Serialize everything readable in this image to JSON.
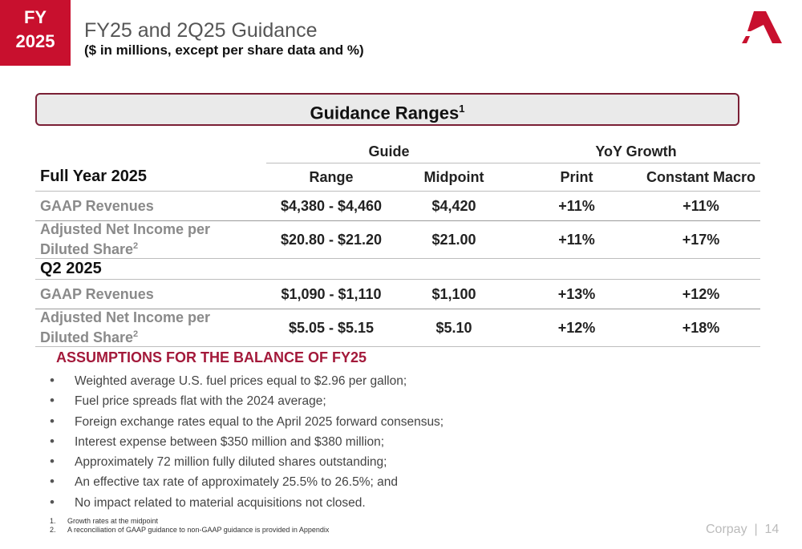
{
  "header": {
    "badge_line1": "FY",
    "badge_line2": "2025",
    "title": "FY25 and 2Q25 Guidance",
    "subtitle": "($ in millions, except per share data and %)"
  },
  "colors": {
    "brand_red": "#c8102e",
    "banner_border": "#7a1f35",
    "assumption_title": "#a3193a"
  },
  "banner": {
    "title": "Guidance Ranges",
    "footnote": "1"
  },
  "table": {
    "group_headers": {
      "guide": "Guide",
      "yoy": "YoY Growth"
    },
    "column_headers": {
      "section": "Full Year 2025",
      "range": "Range",
      "midpoint": "Midpoint",
      "print": "Print",
      "constant_macro": "Constant Macro"
    },
    "full_year": [
      {
        "metric": "GAAP Revenues",
        "footnote": "",
        "range": "$4,380 - $4,460",
        "midpoint": "$4,420",
        "print": "+11%",
        "constant_macro": "+11%"
      },
      {
        "metric_line1": "Adjusted Net Income per",
        "metric_line2": "Diluted Share",
        "footnote": "2",
        "range": "$20.80 - $21.20",
        "midpoint": "$21.00",
        "print": "+11%",
        "constant_macro": "+17%"
      }
    ],
    "q2_section": "Q2 2025",
    "q2": [
      {
        "metric": "GAAP Revenues",
        "footnote": "",
        "range": "$1,090 - $1,110",
        "midpoint": "$1,100",
        "print": "+13%",
        "constant_macro": "+12%"
      },
      {
        "metric_line1": "Adjusted Net Income per",
        "metric_line2": "Diluted Share",
        "footnote": "2",
        "range": "$5.05 - $5.15",
        "midpoint": "$5.10",
        "print": "+12%",
        "constant_macro": "+18%"
      }
    ]
  },
  "assumptions": {
    "title": "ASSUMPTIONS FOR THE BALANCE OF FY25",
    "bullet": "•",
    "items": [
      "Weighted average U.S. fuel prices equal to $2.96 per gallon;",
      "Fuel price spreads flat with the 2024 average;",
      "Foreign exchange rates equal to the April 2025 forward consensus;",
      "Interest expense between $350 million and $380 million;",
      "Approximately 72 million fully diluted shares outstanding;",
      "An effective tax rate of approximately 25.5% to 26.5%; and",
      "No impact related to material acquisitions not closed."
    ]
  },
  "footnotes": [
    {
      "num": "1.",
      "text": "Growth rates at the midpoint"
    },
    {
      "num": "2.",
      "text": "A reconciliation of GAAP guidance to non-GAAP guidance is provided in Appendix"
    }
  ],
  "footer": {
    "text": "Corpay  |  14"
  },
  "logo": {
    "icon": "corpay-logo-icon"
  }
}
